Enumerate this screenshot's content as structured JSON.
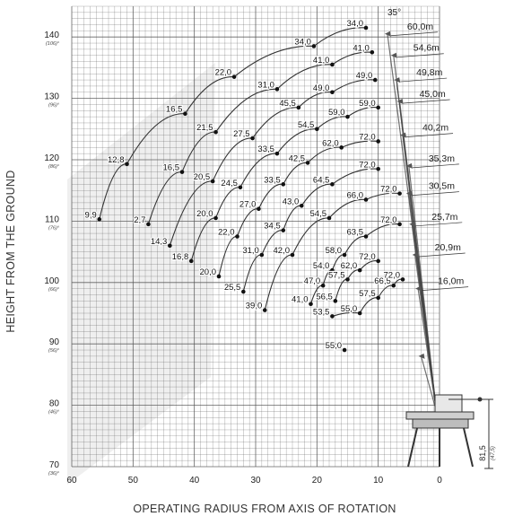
{
  "chart_data": {
    "type": "line",
    "xlabel": "OPERATING RADIUS FROM AXIS OF ROTATION",
    "ylabel": "HEIGHT FROM THE GROUND",
    "xlim": [
      60,
      0
    ],
    "ylim": [
      70,
      145
    ],
    "grid": true,
    "x_ticks": [
      "60",
      "50",
      "40",
      "30",
      "20",
      "10",
      "0"
    ],
    "y_ticks": [
      {
        "main": "140",
        "sub": "(106)°"
      },
      {
        "main": "130",
        "sub": "(96)°"
      },
      {
        "main": "120",
        "sub": "(86)°"
      },
      {
        "main": "110",
        "sub": "(76)°"
      },
      {
        "main": "100",
        "sub": "(66)°"
      },
      {
        "main": "90",
        "sub": "(56)°"
      },
      {
        "main": "80",
        "sub": "(46)°"
      },
      {
        "main": "70",
        "sub": "(36)°"
      }
    ],
    "angle_label": "35°",
    "base_height_label": "81,5",
    "base_height_sub": "(47,5)",
    "series": [
      {
        "name": "60,0m",
        "boom_tip": [
          8.5,
          140.5
        ],
        "points": [
          {
            "x": 55.5,
            "y": 110.3,
            "label": "9,9"
          },
          {
            "x": 51.0,
            "y": 119.3,
            "label": "12,8"
          },
          {
            "x": 41.5,
            "y": 127.5,
            "label": "16,5"
          },
          {
            "x": 33.5,
            "y": 133.5,
            "label": "22,0"
          },
          {
            "x": 20.5,
            "y": 138.5,
            "label": "34,0"
          },
          {
            "x": 12.0,
            "y": 141.5,
            "label": "34,0"
          }
        ]
      },
      {
        "name": "54,6m",
        "boom_tip": [
          7.5,
          137.0
        ],
        "points": [
          {
            "x": 47.5,
            "y": 109.5,
            "label": "2,7"
          },
          {
            "x": 42.0,
            "y": 118.0,
            "label": "16,5"
          },
          {
            "x": 36.5,
            "y": 124.5,
            "label": "21,5"
          },
          {
            "x": 26.5,
            "y": 131.5,
            "label": "31,0"
          },
          {
            "x": 17.5,
            "y": 135.5,
            "label": "41,0"
          },
          {
            "x": 11.0,
            "y": 137.5,
            "label": "41,0"
          }
        ]
      },
      {
        "name": "49,8m",
        "boom_tip": [
          7.0,
          133.0
        ],
        "points": [
          {
            "x": 44.0,
            "y": 106.0,
            "label": "14,3"
          },
          {
            "x": 37.0,
            "y": 116.5,
            "label": "20,5"
          },
          {
            "x": 30.5,
            "y": 123.5,
            "label": "27,5"
          },
          {
            "x": 23.0,
            "y": 128.5,
            "label": "45,5"
          },
          {
            "x": 17.5,
            "y": 131.0,
            "label": "49,0"
          },
          {
            "x": 10.5,
            "y": 133.0,
            "label": "49,0"
          }
        ]
      },
      {
        "name": "45,0m",
        "boom_tip": [
          6.5,
          129.5
        ],
        "points": [
          {
            "x": 40.5,
            "y": 103.5,
            "label": "16,8"
          },
          {
            "x": 36.5,
            "y": 110.5,
            "label": "20,0"
          },
          {
            "x": 32.5,
            "y": 115.5,
            "label": "24,5"
          },
          {
            "x": 26.5,
            "y": 121.0,
            "label": "33,5"
          },
          {
            "x": 20.0,
            "y": 125.0,
            "label": "54,5"
          },
          {
            "x": 15.0,
            "y": 127.0,
            "label": "59,0"
          },
          {
            "x": 10.0,
            "y": 128.5,
            "label": "59,0"
          }
        ]
      },
      {
        "name": "40,2m",
        "boom_tip": [
          6.0,
          124.0
        ],
        "points": [
          {
            "x": 36.0,
            "y": 101.0,
            "label": "20,0"
          },
          {
            "x": 33.0,
            "y": 107.5,
            "label": "22,0"
          },
          {
            "x": 29.5,
            "y": 112.0,
            "label": "27,0"
          },
          {
            "x": 25.5,
            "y": 116.0,
            "label": "33,5"
          },
          {
            "x": 21.5,
            "y": 119.5,
            "label": "42,5"
          },
          {
            "x": 16.0,
            "y": 122.0,
            "label": "62,0"
          },
          {
            "x": 10.0,
            "y": 123.0,
            "label": "72,0"
          }
        ]
      },
      {
        "name": "35,3m",
        "boom_tip": [
          5.0,
          119.0
        ],
        "points": [
          {
            "x": 32.0,
            "y": 98.5,
            "label": "25,5"
          },
          {
            "x": 29.0,
            "y": 104.5,
            "label": "31,0"
          },
          {
            "x": 25.5,
            "y": 108.5,
            "label": "34,5"
          },
          {
            "x": 22.5,
            "y": 112.5,
            "label": "43,0"
          },
          {
            "x": 17.5,
            "y": 116.0,
            "label": "64,5"
          },
          {
            "x": 10.0,
            "y": 118.5,
            "label": "72,0"
          }
        ]
      },
      {
        "name": "30,5m",
        "boom_tip": [
          5.0,
          114.5
        ],
        "points": [
          {
            "x": 28.5,
            "y": 95.5,
            "label": "39,0"
          },
          {
            "x": 24.0,
            "y": 104.5,
            "label": "42,0"
          },
          {
            "x": 18.0,
            "y": 110.5,
            "label": "54,5"
          },
          {
            "x": 12.0,
            "y": 113.5,
            "label": "66,0"
          },
          {
            "x": 6.5,
            "y": 114.5,
            "label": "72,0"
          }
        ]
      },
      {
        "name": "25,7m",
        "boom_tip": [
          4.5,
          109.5
        ],
        "points": [
          {
            "x": 21.0,
            "y": 96.5,
            "label": "41,0"
          },
          {
            "x": 19.0,
            "y": 99.5,
            "label": "47,0"
          },
          {
            "x": 17.5,
            "y": 102.0,
            "label": "54,0"
          },
          {
            "x": 15.5,
            "y": 104.5,
            "label": "58,0"
          },
          {
            "x": 12.0,
            "y": 107.5,
            "label": "63,5"
          },
          {
            "x": 6.5,
            "y": 109.5,
            "label": "72,0"
          }
        ]
      },
      {
        "name": "20,9m",
        "boom_tip": [
          4.0,
          104.5
        ],
        "points": [
          {
            "x": 17.0,
            "y": 97.0,
            "label": "56,5"
          },
          {
            "x": 15.0,
            "y": 100.5,
            "label": "57,5"
          },
          {
            "x": 13.0,
            "y": 102.0,
            "label": "62,0"
          },
          {
            "x": 10.0,
            "y": 103.5,
            "label": "72,0"
          }
        ]
      },
      {
        "name": "16,0m",
        "boom_tip": [
          3.5,
          99.0
        ],
        "points": [
          {
            "x": 17.5,
            "y": 94.5,
            "label": "53,5"
          },
          {
            "x": 13.0,
            "y": 95.0,
            "label": "55,0"
          },
          {
            "x": 10.0,
            "y": 97.5,
            "label": "57,5"
          },
          {
            "x": 7.5,
            "y": 99.5,
            "label": "66,5"
          },
          {
            "x": 6.0,
            "y": 100.5,
            "label": "72,0"
          }
        ]
      },
      {
        "name": "",
        "boom_tip": [
          3.0,
          88.0
        ],
        "points": [
          {
            "x": 15.5,
            "y": 89.0,
            "label": "55,0"
          }
        ]
      }
    ],
    "colors": {
      "grid": "#555555",
      "curve": "#333333",
      "point": "#111111",
      "background": "#ffffff",
      "watermark": "#dcdcdc",
      "boom": "#444444"
    }
  }
}
